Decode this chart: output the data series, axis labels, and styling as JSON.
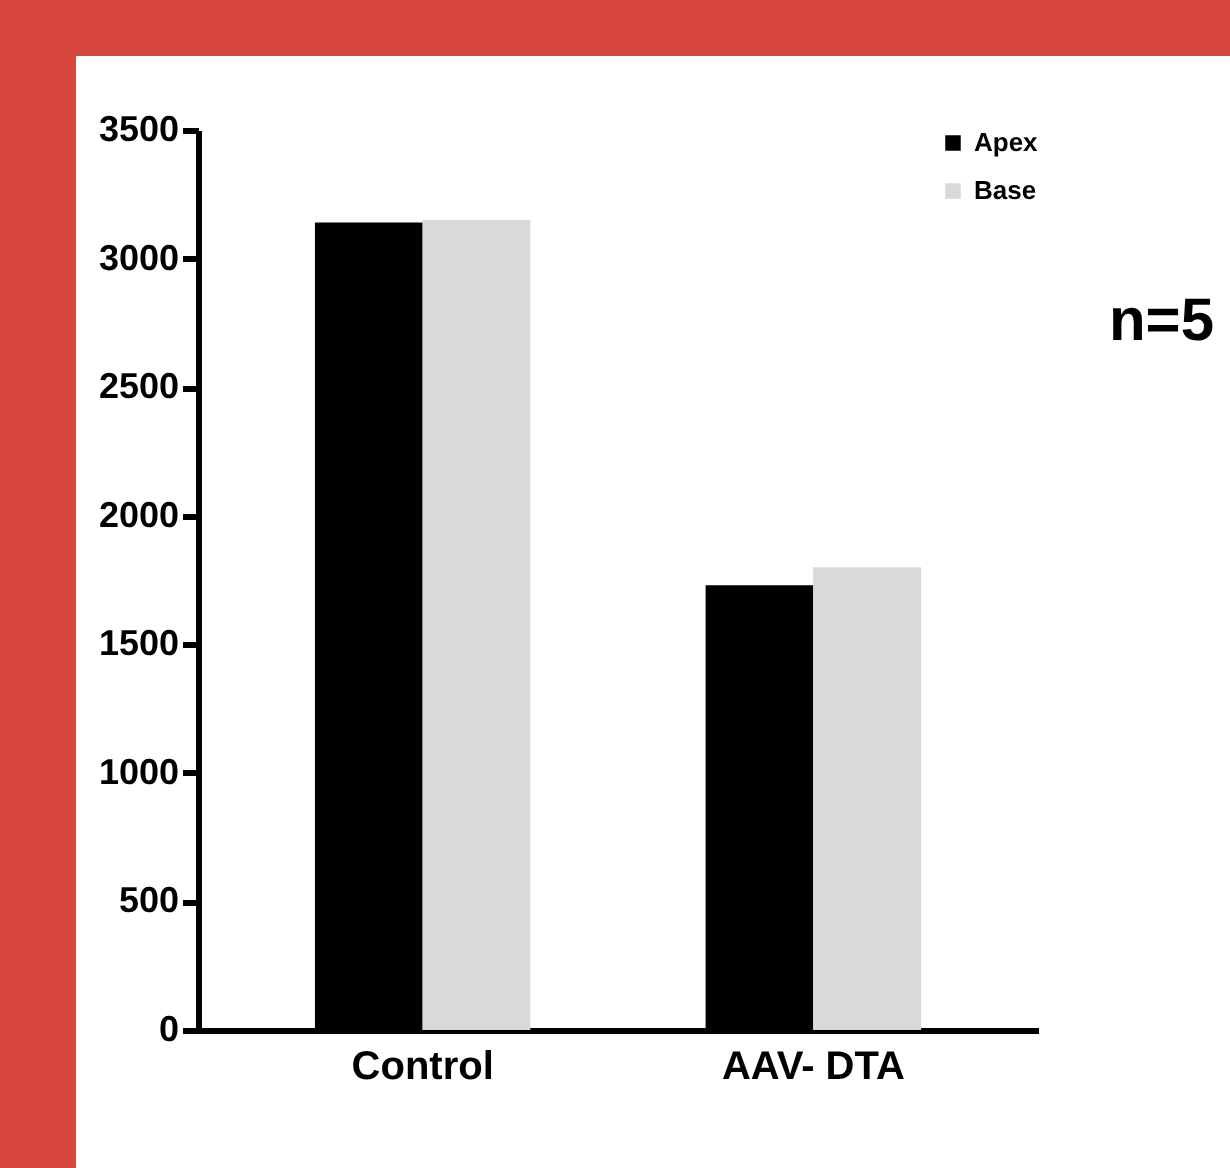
{
  "chart_data": {
    "type": "bar",
    "categories": [
      "Control",
      "AAV- DTA"
    ],
    "series": [
      {
        "name": "Apex",
        "color": "#000000",
        "values": [
          3140,
          1730
        ]
      },
      {
        "name": "Base",
        "color": "#d9d9d9",
        "values": [
          3150,
          1800
        ]
      }
    ],
    "ylim": [
      0,
      3500
    ],
    "yticks": [
      0,
      500,
      1000,
      1500,
      2000,
      2500,
      3000,
      3500
    ],
    "grid": false,
    "legend": "top right",
    "annotations": [
      "n=5"
    ]
  }
}
